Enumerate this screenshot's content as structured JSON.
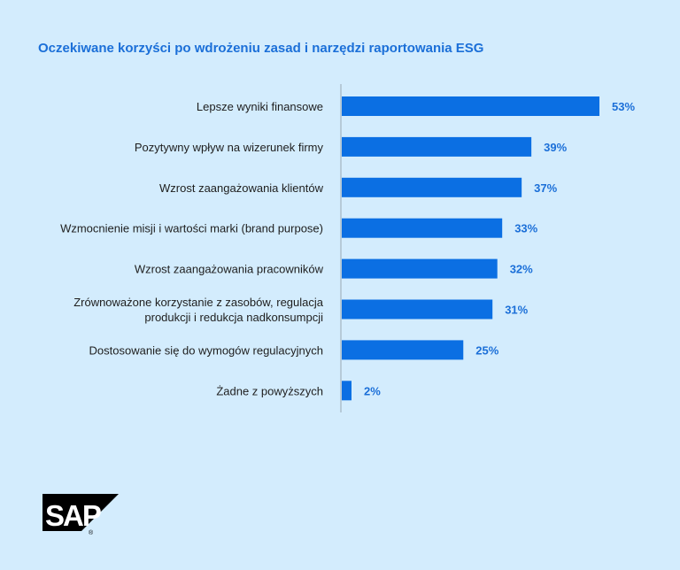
{
  "chart_data": {
    "type": "bar",
    "orientation": "horizontal",
    "title": "Oczekiwane korzyści po wdrożeniu zasad i narzędzi raportowania ESG",
    "categories": [
      [
        "Lepsze wyniki finansowe"
      ],
      [
        "Pozytywny wpływ na wizerunek firmy"
      ],
      [
        "Wzrost zaangażowania klientów"
      ],
      [
        "Wzmocnienie misji i wartości marki (brand purpose)"
      ],
      [
        "Wzrost zaangażowania pracowników"
      ],
      [
        "Zrównoważone korzystanie z zasobów, regulacja",
        "produkcji i redukcja nadkonsumpcji"
      ],
      [
        "Dostosowanie się do wymogów regulacyjnych"
      ],
      [
        "Żadne z powyższych"
      ]
    ],
    "values": [
      53,
      39,
      37,
      33,
      32,
      31,
      25,
      2
    ],
    "value_labels": [
      "53%",
      "39%",
      "37%",
      "33%",
      "32%",
      "31%",
      "25%",
      "2%"
    ],
    "bar_color": "#0b6fe3",
    "label_color": "#1b6fd8",
    "grid": false
  },
  "logo": {
    "text": "SAP",
    "mark": "®"
  }
}
